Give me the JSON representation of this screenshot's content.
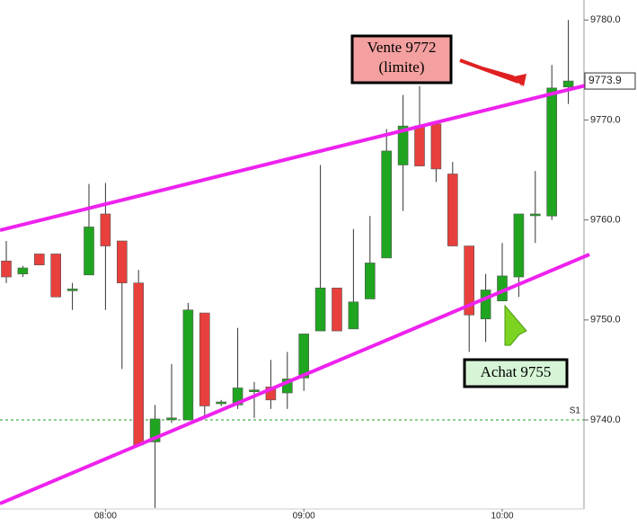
{
  "chart_data": {
    "type": "candlestick",
    "categories": [
      null,
      null,
      null,
      null,
      null,
      null,
      "08:00",
      null,
      null,
      null,
      null,
      null,
      null,
      null,
      null,
      null,
      null,
      null,
      "09:00",
      null,
      null,
      null,
      null,
      null,
      null,
      null,
      null,
      null,
      null,
      null,
      "10:00",
      null,
      null,
      null,
      null
    ],
    "open": [
      9755.9,
      9754.6,
      9756.6,
      9756.6,
      9753.0,
      9754.5,
      9760.6,
      9757.9,
      9753.7,
      9737.8,
      9740.1,
      9740.0,
      9750.7,
      9741.7,
      9741.5,
      9742.9,
      9743.3,
      9742.7,
      9744.2,
      9748.9,
      9753.2,
      9749.1,
      9752.1,
      9756.2,
      9765.5,
      9769.4,
      9769.6,
      9764.6,
      9757.4,
      9750.1,
      9751.9,
      9754.3,
      9760.5,
      9760.4,
      9773.3
    ],
    "high": [
      9757.9,
      9755.4,
      9756.6,
      9756.6,
      9753.7,
      9763.6,
      9763.7,
      9757.9,
      9755.0,
      9741.5,
      9745.6,
      9751.7,
      9750.7,
      9742.0,
      9749.2,
      9743.8,
      9746.0,
      9746.8,
      9748.6,
      9765.5,
      9753.2,
      9759.1,
      9760.4,
      9769.1,
      9772.5,
      9773.4,
      9769.6,
      9765.8,
      9757.4,
      9754.6,
      9757.7,
      9760.6,
      9764.9,
      9775.5,
      9780.0
    ],
    "low": [
      9753.7,
      9754.3,
      9755.5,
      9752.3,
      9751.0,
      9754.5,
      9751.0,
      9745.1,
      9737.5,
      9731.2,
      9739.7,
      9740.0,
      9740.2,
      9741.4,
      9741.1,
      9740.2,
      9741.1,
      9741.1,
      9742.9,
      9748.9,
      9748.9,
      9749.1,
      9752.1,
      9756.2,
      9760.9,
      9765.4,
      9763.8,
      9757.4,
      9746.8,
      9747.8,
      9751.9,
      9752.3,
      9757.7,
      9760.0,
      9771.6
    ],
    "close": [
      9754.3,
      9755.2,
      9755.5,
      9752.3,
      9753.1,
      9759.3,
      9757.4,
      9753.7,
      9737.5,
      9740.1,
      9740.2,
      9751.0,
      9741.4,
      9741.8,
      9743.2,
      9743.0,
      9742.0,
      9744.1,
      9748.6,
      9753.2,
      9748.9,
      9751.8,
      9755.7,
      9766.9,
      9769.4,
      9765.4,
      9765.1,
      9757.4,
      9750.5,
      9753.0,
      9754.4,
      9760.6,
      9760.6,
      9773.2,
      9773.9
    ],
    "up_color": "#1fa51f",
    "down_color": "#e8403c",
    "ylim": [
      9731.1,
      9782.0
    ],
    "yticks": [
      {
        "value": 9740,
        "label": "9740.0"
      },
      {
        "value": 9750,
        "label": "9750.0"
      },
      {
        "value": 9760,
        "label": "9760.0"
      },
      {
        "value": 9770,
        "label": "9770.0"
      },
      {
        "value": 9780,
        "label": "9780.0"
      }
    ],
    "last_price": 9773.9,
    "levels": [
      {
        "name": "S1",
        "value": 9740,
        "color": "#22a022"
      }
    ],
    "annotations": [
      {
        "lines": [
          "Vente 9772",
          "(limite)"
        ],
        "color": "#f4a0a0"
      },
      {
        "lines": [
          "Achat 9755"
        ],
        "color": "#d6f5d6"
      }
    ]
  }
}
